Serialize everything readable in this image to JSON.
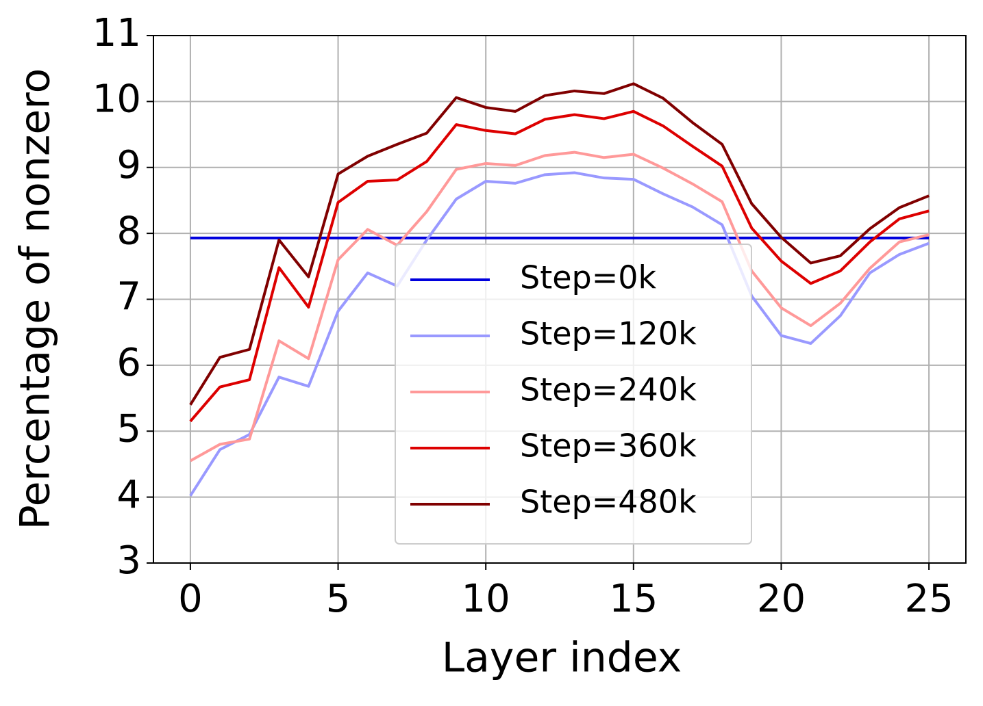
{
  "chart_data": {
    "type": "line",
    "xlabel": "Layer index",
    "ylabel": "Percentage of nonzero",
    "x": [
      0,
      1,
      2,
      3,
      4,
      5,
      6,
      7,
      8,
      9,
      10,
      11,
      12,
      13,
      14,
      15,
      16,
      17,
      18,
      19,
      20,
      21,
      22,
      23,
      24,
      25
    ],
    "series": [
      {
        "name": "Step=0k",
        "color": "#0000dd",
        "values": [
          7.93,
          7.93,
          7.93,
          7.93,
          7.93,
          7.93,
          7.93,
          7.93,
          7.93,
          7.93,
          7.93,
          7.93,
          7.93,
          7.93,
          7.93,
          7.93,
          7.93,
          7.93,
          7.93,
          7.93,
          7.93,
          7.93,
          7.93,
          7.93,
          7.93,
          7.93
        ]
      },
      {
        "name": "Step=120k",
        "color": "#9999ff",
        "values": [
          4.02,
          4.72,
          4.95,
          5.82,
          5.68,
          6.82,
          7.4,
          7.2,
          7.9,
          8.52,
          8.79,
          8.76,
          8.89,
          8.92,
          8.84,
          8.82,
          8.6,
          8.4,
          8.13,
          7.05,
          6.45,
          6.33,
          6.75,
          7.4,
          7.68,
          7.85
        ]
      },
      {
        "name": "Step=240k",
        "color": "#ff9999",
        "values": [
          4.55,
          4.8,
          4.88,
          6.37,
          6.1,
          7.6,
          8.06,
          7.82,
          8.33,
          8.97,
          9.06,
          9.03,
          9.18,
          9.23,
          9.15,
          9.2,
          8.99,
          8.75,
          8.48,
          7.43,
          6.87,
          6.6,
          6.94,
          7.47,
          7.87,
          7.98
        ]
      },
      {
        "name": "Step=360k",
        "color": "#dd0000",
        "values": [
          5.15,
          5.67,
          5.78,
          7.48,
          6.88,
          8.47,
          8.79,
          8.81,
          9.09,
          9.65,
          9.56,
          9.51,
          9.73,
          9.8,
          9.74,
          9.85,
          9.63,
          9.32,
          9.02,
          8.08,
          7.58,
          7.24,
          7.43,
          7.87,
          8.22,
          8.34
        ]
      },
      {
        "name": "Step=480k",
        "color": "#800000",
        "values": [
          5.4,
          6.12,
          6.24,
          7.9,
          7.34,
          8.9,
          9.17,
          9.35,
          9.52,
          10.06,
          9.91,
          9.85,
          10.09,
          10.16,
          10.12,
          10.27,
          10.05,
          9.68,
          9.35,
          8.45,
          7.94,
          7.55,
          7.66,
          8.07,
          8.39,
          8.57
        ]
      }
    ],
    "xlim": [
      -1.25,
      26.25
    ],
    "ylim": [
      3,
      11
    ],
    "xticks": [
      0,
      5,
      10,
      15,
      20,
      25
    ],
    "yticks": [
      3,
      4,
      5,
      6,
      7,
      8,
      9,
      10,
      11
    ],
    "grid": true,
    "legend": "lower center"
  }
}
